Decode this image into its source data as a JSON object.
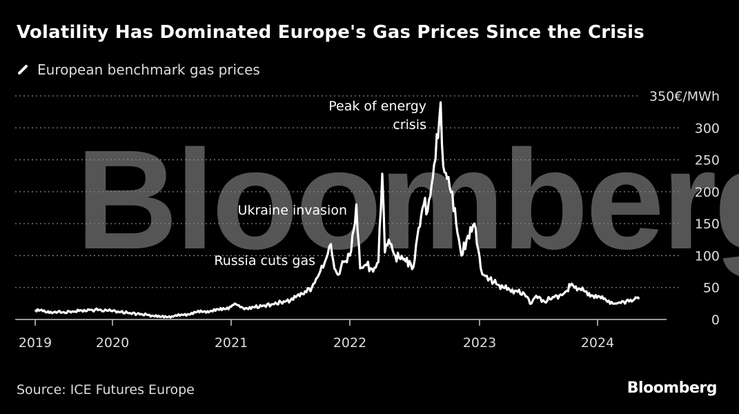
{
  "header": {
    "title": "Volatility Has Dominated Europe's Gas Prices Since the Crisis",
    "legend_label": "European benchmark gas prices"
  },
  "footer": {
    "source": "Source: ICE Futures Europe",
    "logo": "Bloomberg"
  },
  "watermark": "Bloomberg",
  "colors": {
    "background": "#000000",
    "line": "#ffffff",
    "grid": "#888888",
    "watermark": "#555555"
  },
  "chart_data": {
    "type": "line",
    "title": "Volatility Has Dominated Europe's Gas Prices Since the Crisis",
    "ylabel": "€/MWh",
    "ylim": [
      0,
      350
    ],
    "xlim": [
      2019.0,
      2024.5
    ],
    "y_ticks": [
      0,
      50,
      100,
      150,
      200,
      250,
      300,
      350
    ],
    "y_tick_labels": [
      "0",
      "50",
      "100",
      "150",
      "200",
      "250",
      "300",
      "350€/MWh"
    ],
    "x_ticks": [
      2019,
      2020,
      2021,
      2022,
      2023,
      2024
    ],
    "x_tick_labels": [
      "2019",
      "2020",
      "2021",
      "2022",
      "2023",
      "2024"
    ],
    "grid": true,
    "legend_position": "top-left",
    "annotations": [
      {
        "text": [
          "Peak of energy",
          "crisis"
        ],
        "x": 2022.7,
        "y": 340
      },
      {
        "text": [
          "Ukraine invasion"
        ],
        "x": 2022.05,
        "y": 180
      },
      {
        "text": [
          "Russia cuts gas"
        ],
        "x": 2021.84,
        "y": 118
      }
    ],
    "series": [
      {
        "name": "European benchmark gas prices",
        "points": [
          [
            2019.0,
            15
          ],
          [
            2019.1,
            13
          ],
          [
            2019.2,
            12
          ],
          [
            2019.35,
            11
          ],
          [
            2019.5,
            12
          ],
          [
            2019.6,
            14
          ],
          [
            2019.7,
            15
          ],
          [
            2019.85,
            15
          ],
          [
            2020.0,
            13
          ],
          [
            2020.15,
            10
          ],
          [
            2020.3,
            7
          ],
          [
            2020.4,
            4
          ],
          [
            2020.5,
            5
          ],
          [
            2020.6,
            7
          ],
          [
            2020.7,
            11
          ],
          [
            2020.8,
            13
          ],
          [
            2020.9,
            15
          ],
          [
            2021.0,
            20
          ],
          [
            2021.03,
            25
          ],
          [
            2021.1,
            18
          ],
          [
            2021.2,
            19
          ],
          [
            2021.35,
            24
          ],
          [
            2021.5,
            30
          ],
          [
            2021.6,
            40
          ],
          [
            2021.68,
            50
          ],
          [
            2021.75,
            75
          ],
          [
            2021.8,
            95
          ],
          [
            2021.84,
            118
          ],
          [
            2021.87,
            80
          ],
          [
            2021.9,
            70
          ],
          [
            2021.95,
            90
          ],
          [
            2022.0,
            100
          ],
          [
            2022.03,
            140
          ],
          [
            2022.05,
            180
          ],
          [
            2022.08,
            80
          ],
          [
            2022.13,
            85
          ],
          [
            2022.18,
            75
          ],
          [
            2022.22,
            90
          ],
          [
            2022.25,
            228
          ],
          [
            2022.27,
            105
          ],
          [
            2022.3,
            125
          ],
          [
            2022.35,
            100
          ],
          [
            2022.42,
            95
          ],
          [
            2022.49,
            82
          ],
          [
            2022.52,
            130
          ],
          [
            2022.57,
            180
          ],
          [
            2022.6,
            170
          ],
          [
            2022.63,
            210
          ],
          [
            2022.66,
            250
          ],
          [
            2022.7,
            340
          ],
          [
            2022.72,
            240
          ],
          [
            2022.75,
            220
          ],
          [
            2022.79,
            200
          ],
          [
            2022.82,
            150
          ],
          [
            2022.86,
            100
          ],
          [
            2022.9,
            125
          ],
          [
            2022.96,
            150
          ],
          [
            2022.99,
            110
          ],
          [
            2023.01,
            80
          ],
          [
            2023.05,
            68
          ],
          [
            2023.12,
            58
          ],
          [
            2023.2,
            50
          ],
          [
            2023.3,
            45
          ],
          [
            2023.38,
            40
          ],
          [
            2023.44,
            25
          ],
          [
            2023.48,
            37
          ],
          [
            2023.55,
            28
          ],
          [
            2023.62,
            35
          ],
          [
            2023.7,
            38
          ],
          [
            2023.74,
            45
          ],
          [
            2023.77,
            53
          ],
          [
            2023.85,
            48
          ],
          [
            2023.95,
            38
          ],
          [
            2024.05,
            32
          ],
          [
            2024.15,
            25
          ],
          [
            2024.22,
            28
          ],
          [
            2024.3,
            30
          ],
          [
            2024.33,
            34
          ],
          [
            2024.35,
            32
          ]
        ]
      }
    ]
  }
}
